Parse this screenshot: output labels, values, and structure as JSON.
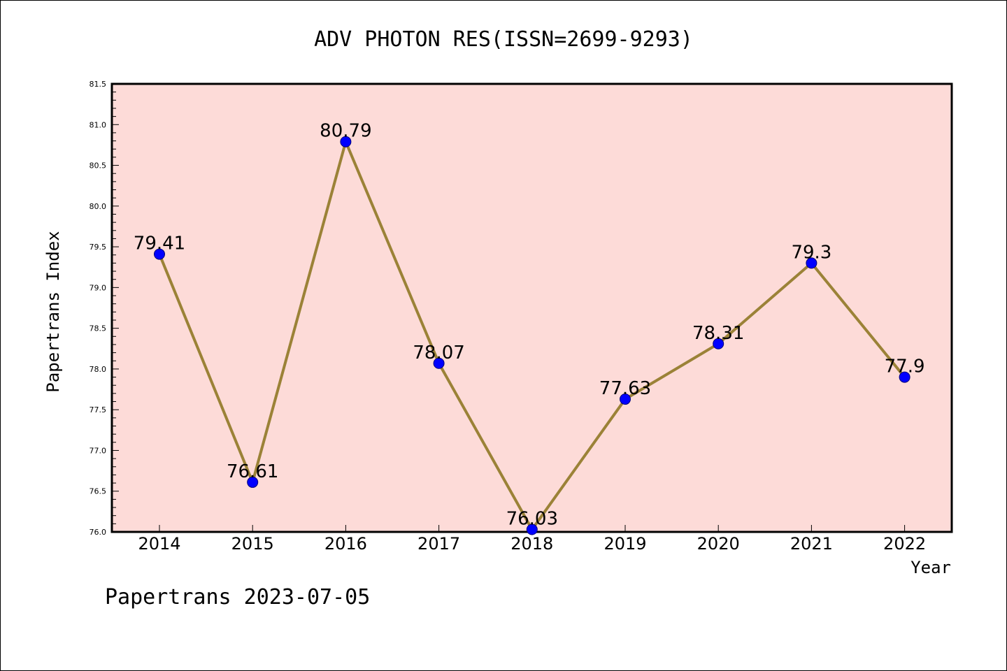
{
  "chart_data": {
    "type": "line",
    "title": "ADV PHOTON RES(ISSN=2699-9293)",
    "xlabel": "Year",
    "ylabel": "Papertrans Index",
    "categories": [
      "2014",
      "2015",
      "2016",
      "2017",
      "2018",
      "2019",
      "2020",
      "2021",
      "2022"
    ],
    "values": [
      79.41,
      76.61,
      80.79,
      78.07,
      76.03,
      77.63,
      78.31,
      79.3,
      77.9
    ],
    "data_labels": [
      "79.41",
      "76.61",
      "80.79",
      "78.07",
      "76.03",
      "77.63",
      "78.31",
      "79.3",
      "77.9"
    ],
    "ylim": [
      76.0,
      81.5
    ],
    "yticks": [
      "76.0",
      "76.5",
      "77.0",
      "77.5",
      "78.0",
      "78.5",
      "79.0",
      "79.5",
      "80.0",
      "80.5",
      "81.0",
      "81.5"
    ],
    "grid": false,
    "legend": "none",
    "colors": {
      "plot_background": "#fddbd8",
      "line": "#9b8237",
      "marker": "#0000ff"
    }
  },
  "footer": "Papertrans 2023-07-05"
}
